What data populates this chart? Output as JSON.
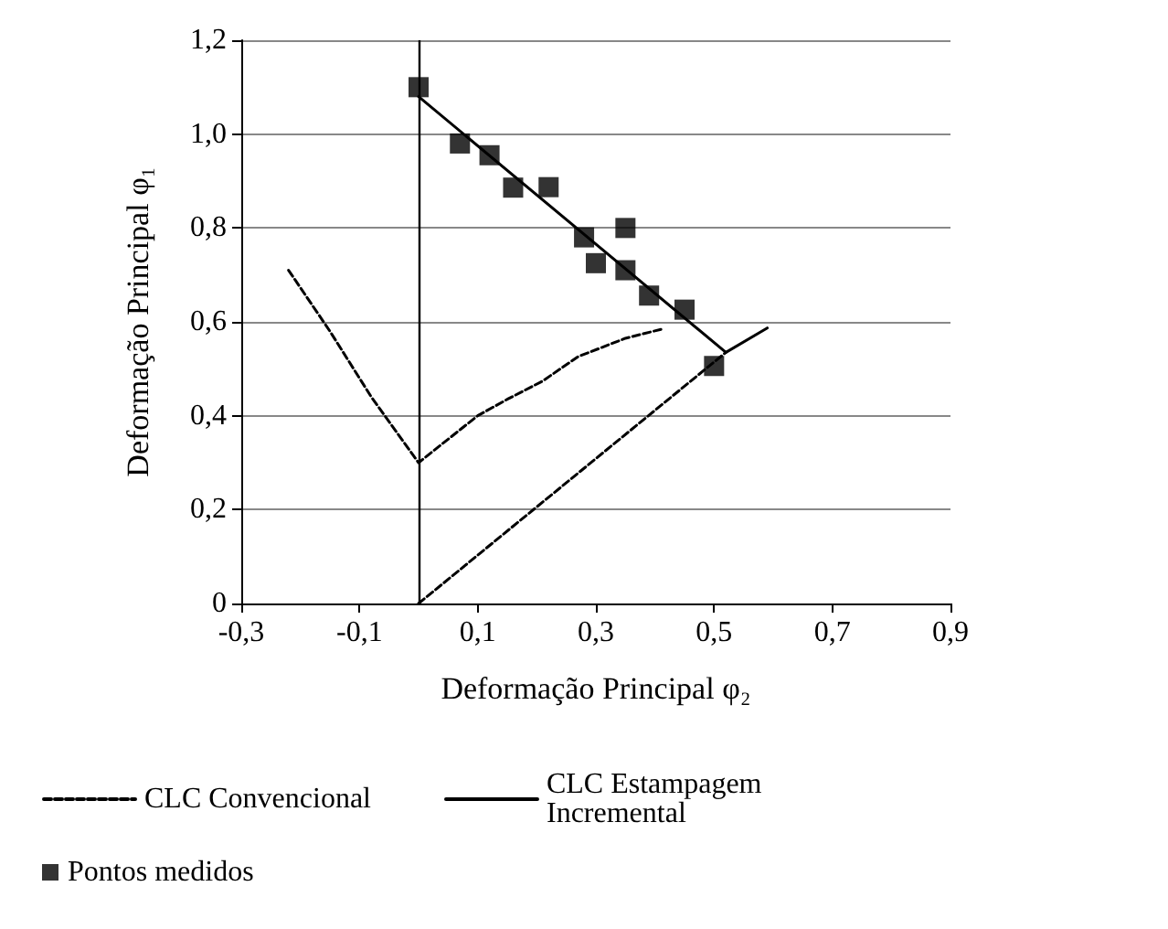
{
  "chart_data": {
    "type": "line",
    "xlabel": "Deformação Principal φ₂",
    "ylabel": "Deformação Principal φ₁",
    "xlim": [
      -0.3,
      0.9
    ],
    "xticks": [
      {
        "value": -0.3,
        "label": "-0,3"
      },
      {
        "value": -0.1,
        "label": "-0,1"
      },
      {
        "value": 0.1,
        "label": "0,1"
      },
      {
        "value": 0.3,
        "label": "0,3"
      },
      {
        "value": 0.5,
        "label": "0,5"
      },
      {
        "value": 0.7,
        "label": "0,7"
      },
      {
        "value": 0.9,
        "label": "0,9"
      }
    ],
    "ylim": [
      0,
      1.2
    ],
    "yticks": [
      {
        "value": 0,
        "label": "0"
      },
      {
        "value": 0.2,
        "label": "0,2"
      },
      {
        "value": 0.4,
        "label": "0,4"
      },
      {
        "value": 0.6,
        "label": "0,6"
      },
      {
        "value": 0.8,
        "label": "0,8"
      },
      {
        "value": 1.0,
        "label": "1,0"
      },
      {
        "value": 1.2,
        "label": "1,2"
      }
    ],
    "grid": "y",
    "legend": "bottom",
    "ref_lines": [
      {
        "axis": "x",
        "value": 0,
        "color": "#000000"
      }
    ],
    "series": [
      {
        "name": "CLC Convencional",
        "line_style": "dashed",
        "marker": "none",
        "color": "#000000",
        "x": [
          -0.22,
          -0.15,
          -0.08,
          0,
          0.05,
          0.1,
          0.15,
          0.21,
          0.27,
          0.35,
          0.41
        ],
        "values": [
          0.71,
          0.58,
          0.44,
          0.3,
          0.35,
          0.4,
          0.435,
          0.474,
          0.526,
          0.565,
          0.584
        ]
      },
      {
        "name": "CLC Estampagem Incremental",
        "line_style": "solid",
        "marker": "none",
        "color": "#000000",
        "x": [
          0,
          0.52,
          0.59
        ],
        "values": [
          1.08,
          0.535,
          0.587
        ]
      },
      {
        "line_style": "dashed",
        "marker": "none",
        "color": "#000000",
        "x": [
          0,
          0.52
        ],
        "values": [
          0,
          0.535
        ]
      },
      {
        "name": "Pontos medidos",
        "type": "scatter",
        "marker": "square",
        "color": "#000000",
        "x": [
          0,
          0.07,
          0.12,
          0.16,
          0.22,
          0.28,
          0.3,
          0.35,
          0.35,
          0.39,
          0.45,
          0.5
        ],
        "values": [
          1.1,
          0.98,
          0.955,
          0.886,
          0.887,
          0.78,
          0.725,
          0.8,
          0.71,
          0.656,
          0.626,
          0.506
        ]
      }
    ]
  }
}
